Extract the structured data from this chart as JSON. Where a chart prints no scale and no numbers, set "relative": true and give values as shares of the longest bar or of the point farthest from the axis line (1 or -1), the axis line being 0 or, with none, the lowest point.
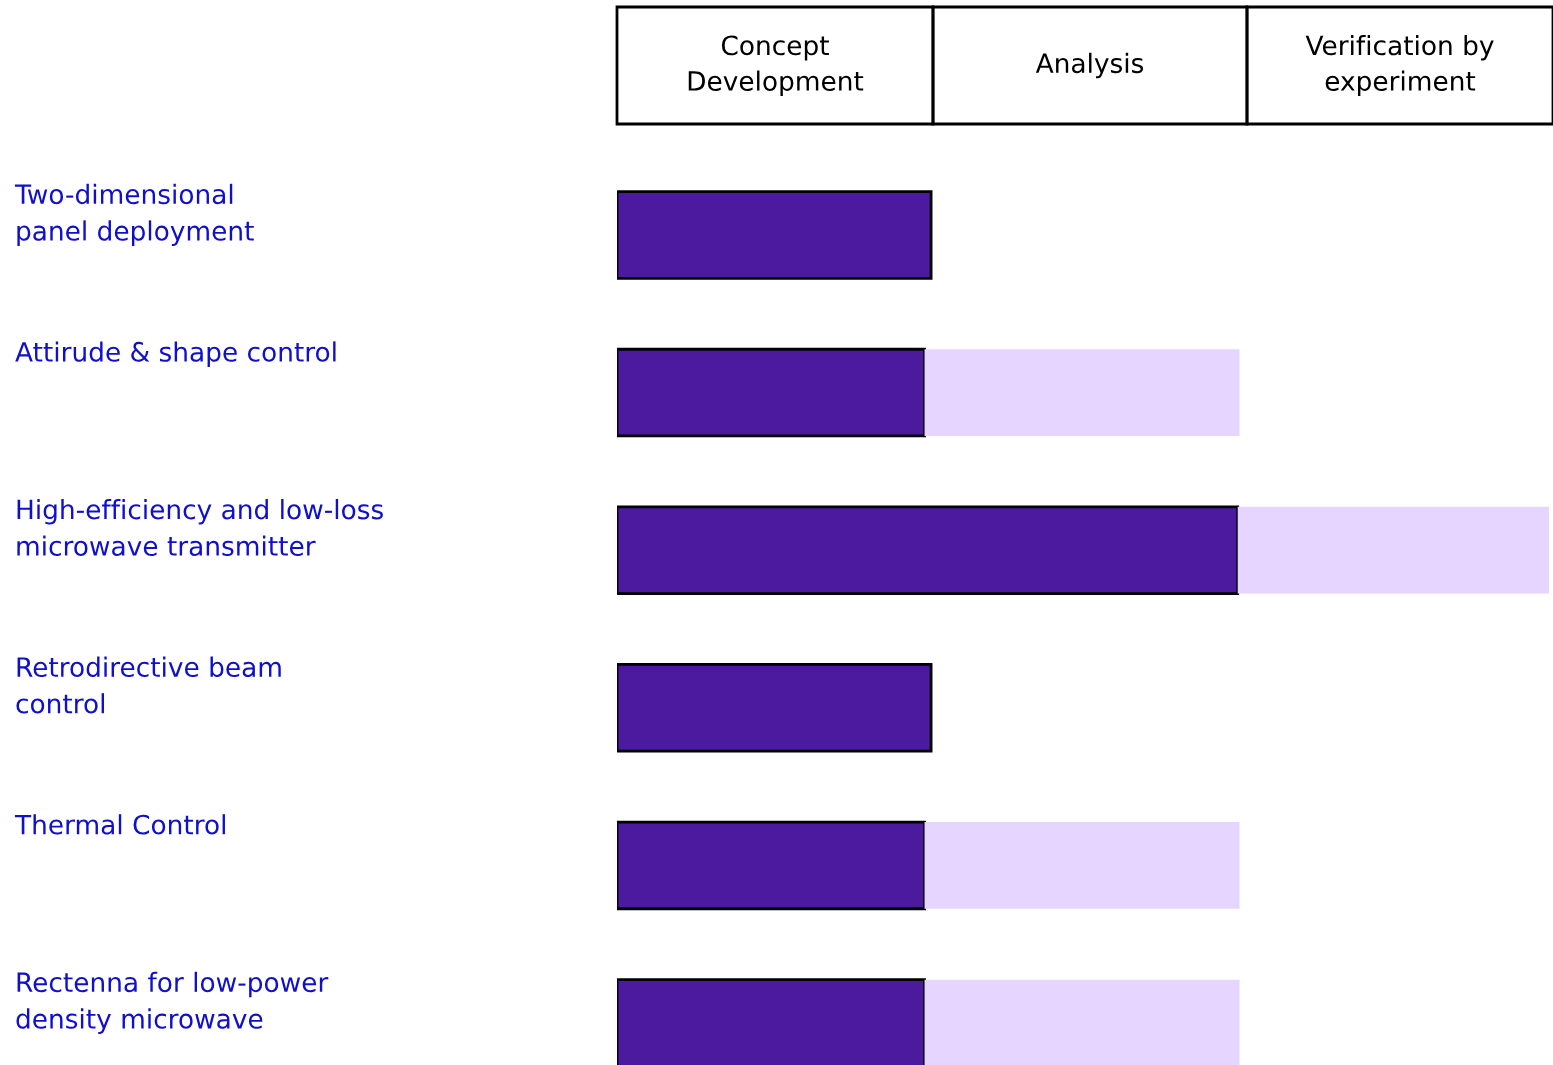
{
  "chart_data": {
    "type": "bar",
    "orientation": "horizontal",
    "stacked": true,
    "relative": true,
    "categories": [
      "Two-dimensional\npanel deployment",
      "Attirude & shape control",
      "High-efficiency and low-loss\nmicrowave transmitter",
      "Retrodirective beam\ncontrol",
      "Thermal Control",
      "Rectenna for low-power\ndensity microwave"
    ],
    "series": [
      {
        "color": "#4b1a9e",
        "values": [
          0.337,
          0.33,
          0.666,
          0.337,
          0.33,
          0.33
        ]
      },
      {
        "color": "#e6d5ff",
        "values": [
          null,
          0.338,
          0.334,
          null,
          0.338,
          0.338
        ]
      }
    ],
    "annotations": [
      "Concept\nDevelopment",
      "Analysis",
      "Verification by\nexperiment"
    ],
    "legend": false
  }
}
